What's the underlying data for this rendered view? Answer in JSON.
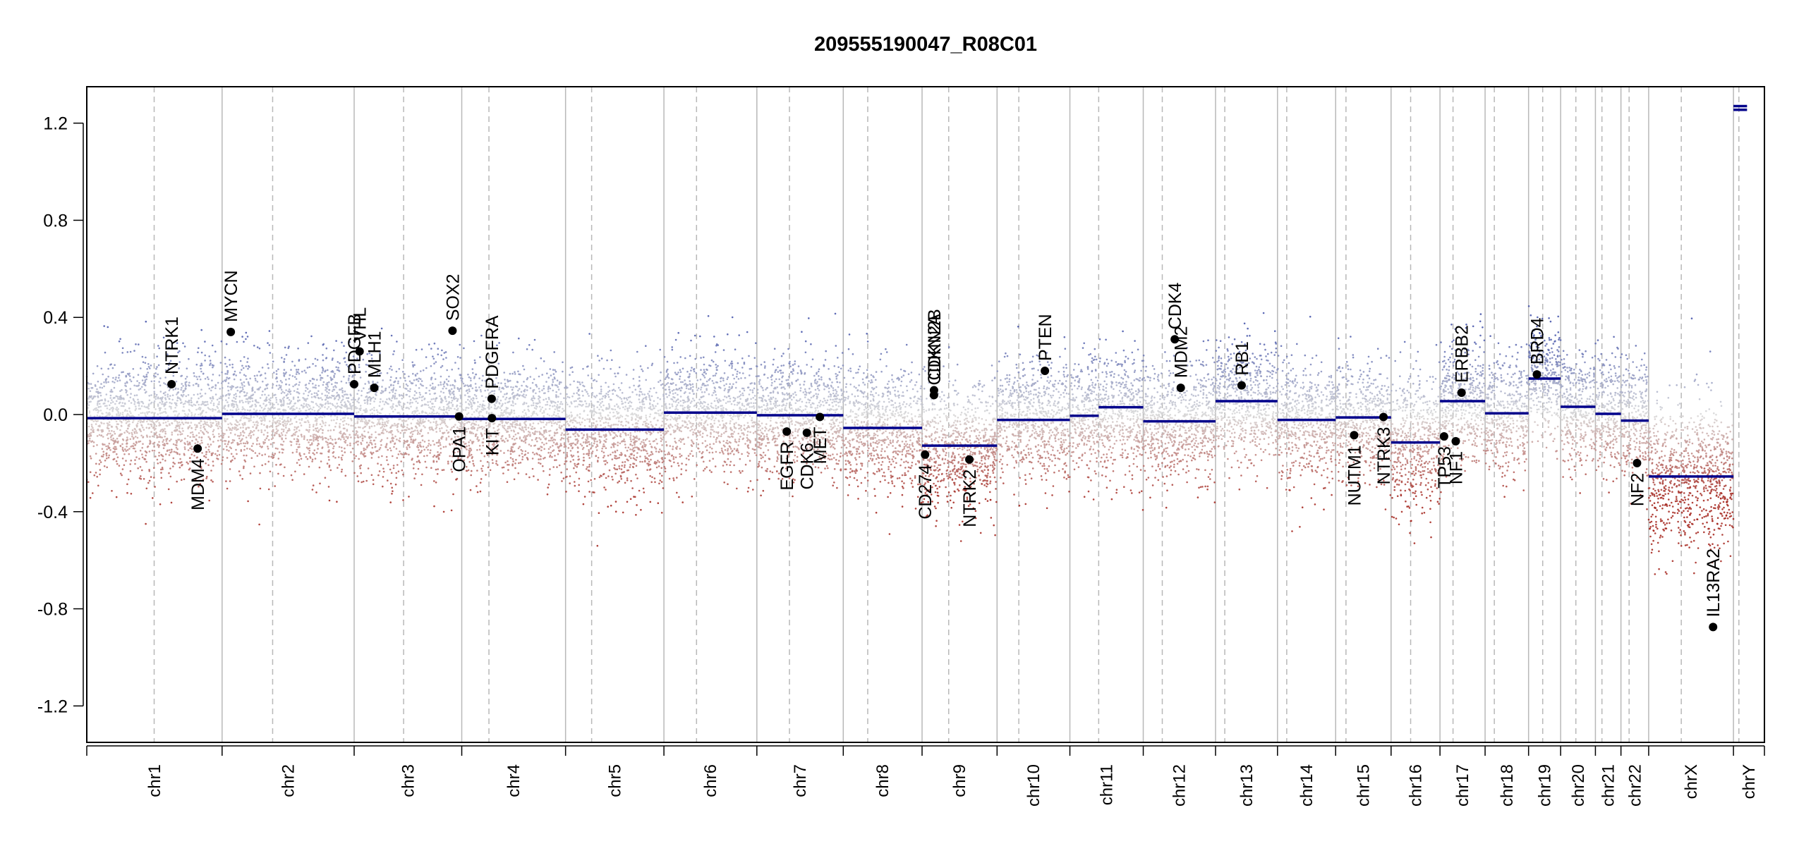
{
  "chart_data": {
    "type": "scatter",
    "title": "209555190047_R08C01",
    "xlabel": "",
    "ylabel": "",
    "ylim": [
      -1.35,
      1.35
    ],
    "y_ticks": [
      -1.2,
      -0.8,
      -0.4,
      0.0,
      0.4,
      0.8,
      1.2
    ],
    "y_tick_labels": [
      "-1.2",
      "-0.8",
      "-0.4",
      "0.0",
      "0.4",
      "0.8",
      "1.2"
    ],
    "grid": false,
    "x_tick_labels": [
      "chr1",
      "chr2",
      "chr3",
      "chr4",
      "chr5",
      "chr6",
      "chr7",
      "chr8",
      "chr9",
      "chr10",
      "chr11",
      "chr12",
      "chr13",
      "chr14",
      "chr15",
      "chr16",
      "chr17",
      "chr18",
      "chr19",
      "chr20",
      "chr21",
      "chr22",
      "chrX",
      "chrY"
    ],
    "chromosomes": [
      {
        "name": "chr1",
        "length_mb": 249,
        "centromere_mb": 124
      },
      {
        "name": "chr2",
        "length_mb": 243,
        "centromere_mb": 93
      },
      {
        "name": "chr3",
        "length_mb": 198,
        "centromere_mb": 91
      },
      {
        "name": "chr4",
        "length_mb": 191,
        "centromere_mb": 50
      },
      {
        "name": "chr5",
        "length_mb": 181,
        "centromere_mb": 48
      },
      {
        "name": "chr6",
        "length_mb": 171,
        "centromere_mb": 60
      },
      {
        "name": "chr7",
        "length_mb": 159,
        "centromere_mb": 60
      },
      {
        "name": "chr8",
        "length_mb": 145,
        "centromere_mb": 45
      },
      {
        "name": "chr9",
        "length_mb": 138,
        "centromere_mb": 49
      },
      {
        "name": "chr10",
        "length_mb": 134,
        "centromere_mb": 40
      },
      {
        "name": "chr11",
        "length_mb": 135,
        "centromere_mb": 53
      },
      {
        "name": "chr12",
        "length_mb": 133,
        "centromere_mb": 35
      },
      {
        "name": "chr13",
        "length_mb": 114,
        "centromere_mb": 17
      },
      {
        "name": "chr14",
        "length_mb": 107,
        "centromere_mb": 17
      },
      {
        "name": "chr15",
        "length_mb": 102,
        "centromere_mb": 19
      },
      {
        "name": "chr16",
        "length_mb": 90,
        "centromere_mb": 36
      },
      {
        "name": "chr17",
        "length_mb": 83,
        "centromere_mb": 24
      },
      {
        "name": "chr18",
        "length_mb": 80,
        "centromere_mb": 17
      },
      {
        "name": "chr19",
        "length_mb": 59,
        "centromere_mb": 26
      },
      {
        "name": "chr20",
        "length_mb": 64,
        "centromere_mb": 28
      },
      {
        "name": "chr21",
        "length_mb": 47,
        "centromere_mb": 12
      },
      {
        "name": "chr22",
        "length_mb": 51,
        "centromere_mb": 15
      },
      {
        "name": "chrX",
        "length_mb": 156,
        "centromere_mb": 60
      },
      {
        "name": "chrY",
        "length_mb": 57,
        "centromere_mb": 10
      }
    ],
    "segments": [
      {
        "chr": "chr1",
        "start_mb": 0,
        "end_mb": 249,
        "value": -0.015
      },
      {
        "chr": "chr2",
        "start_mb": 0,
        "end_mb": 243,
        "value": 0.003
      },
      {
        "chr": "chr3",
        "start_mb": 0,
        "end_mb": 198,
        "value": -0.008
      },
      {
        "chr": "chr4",
        "start_mb": 0,
        "end_mb": 191,
        "value": -0.018
      },
      {
        "chr": "chr5",
        "start_mb": 0,
        "end_mb": 181,
        "value": -0.062
      },
      {
        "chr": "chr6",
        "start_mb": 0,
        "end_mb": 171,
        "value": 0.008
      },
      {
        "chr": "chr7",
        "start_mb": 0,
        "end_mb": 159,
        "value": -0.003
      },
      {
        "chr": "chr8",
        "start_mb": 0,
        "end_mb": 145,
        "value": -0.055
      },
      {
        "chr": "chr9",
        "start_mb": 0,
        "end_mb": 138,
        "value": -0.128
      },
      {
        "chr": "chr10",
        "start_mb": 0,
        "end_mb": 134,
        "value": -0.022
      },
      {
        "chr": "chr11",
        "start_mb": 0,
        "end_mb": 53,
        "value": -0.005
      },
      {
        "chr": "chr11",
        "start_mb": 53,
        "end_mb": 135,
        "value": 0.03
      },
      {
        "chr": "chr12",
        "start_mb": 0,
        "end_mb": 133,
        "value": -0.028
      },
      {
        "chr": "chr13",
        "start_mb": 0,
        "end_mb": 114,
        "value": 0.055
      },
      {
        "chr": "chr14",
        "start_mb": 0,
        "end_mb": 107,
        "value": -0.022
      },
      {
        "chr": "chr15",
        "start_mb": 0,
        "end_mb": 102,
        "value": -0.012
      },
      {
        "chr": "chr16",
        "start_mb": 0,
        "end_mb": 90,
        "value": -0.115
      },
      {
        "chr": "chr17",
        "start_mb": 0,
        "end_mb": 83,
        "value": 0.055
      },
      {
        "chr": "chr18",
        "start_mb": 0,
        "end_mb": 80,
        "value": 0.005
      },
      {
        "chr": "chr19",
        "start_mb": 0,
        "end_mb": 59,
        "value": 0.148
      },
      {
        "chr": "chr20",
        "start_mb": 0,
        "end_mb": 64,
        "value": 0.032
      },
      {
        "chr": "chr21",
        "start_mb": 0,
        "end_mb": 47,
        "value": 0.003
      },
      {
        "chr": "chr22",
        "start_mb": 0,
        "end_mb": 51,
        "value": -0.025
      },
      {
        "chr": "chrX",
        "start_mb": 0,
        "end_mb": 156,
        "value": -0.255
      },
      {
        "chr": "chrY",
        "start_mb": 0,
        "end_mb": 25,
        "value": 1.255
      },
      {
        "chr": "chrY",
        "start_mb": 0,
        "end_mb": 25,
        "value": 1.27
      }
    ],
    "genes": [
      {
        "name": "NTRK1",
        "chr": "chr1",
        "pos_mb": 156,
        "value": 0.125,
        "label_side": "above"
      },
      {
        "name": "MDM4",
        "chr": "chr1",
        "pos_mb": 204,
        "value": -0.14,
        "label_side": "below"
      },
      {
        "name": "MYCN",
        "chr": "chr2",
        "pos_mb": 16,
        "value": 0.34,
        "label_side": "above"
      },
      {
        "name": "PDGFRA",
        "chr": "chr4",
        "pos_mb": 55,
        "value": 0.065,
        "label_side": "above"
      },
      {
        "name": "KIT",
        "chr": "chr4",
        "pos_mb": 55.5,
        "value": -0.015,
        "label_side": "below"
      },
      {
        "name": "PDGFB",
        "chr": "chr22",
        "pos_mb": 39.6,
        "value": 0.125,
        "label_side": "above",
        "placed_at": {
          "chr": "chr3",
          "pos_mb": 0
        }
      },
      {
        "name": "VHL",
        "chr": "chr3",
        "pos_mb": 10,
        "value": 0.26,
        "label_side": "above"
      },
      {
        "name": "MLH1",
        "chr": "chr3",
        "pos_mb": 37,
        "value": 0.11,
        "label_side": "above"
      },
      {
        "name": "SOX2",
        "chr": "chr3",
        "pos_mb": 181,
        "value": 0.345,
        "label_side": "above"
      },
      {
        "name": "OPA1",
        "chr": "chr3",
        "pos_mb": 193,
        "value": -0.008,
        "label_side": "below"
      },
      {
        "name": "EGFR",
        "chr": "chr7",
        "pos_mb": 55,
        "value": -0.07,
        "label_side": "below"
      },
      {
        "name": "CDK6",
        "chr": "chr7",
        "pos_mb": 92,
        "value": -0.075,
        "label_side": "below"
      },
      {
        "name": "MET",
        "chr": "chr7",
        "pos_mb": 116,
        "value": -0.01,
        "label_side": "below"
      },
      {
        "name": "CD274",
        "chr": "chr9",
        "pos_mb": 5.5,
        "value": -0.165,
        "label_side": "below"
      },
      {
        "name": "CDKN2A",
        "chr": "chr9",
        "pos_mb": 21.9,
        "value": 0.08,
        "label_side": "above"
      },
      {
        "name": "CDKN2B",
        "chr": "chr9",
        "pos_mb": 22.0,
        "value": 0.1,
        "label_side": "above"
      },
      {
        "name": "NTRK2",
        "chr": "chr9",
        "pos_mb": 87,
        "value": -0.185,
        "label_side": "below"
      },
      {
        "name": "PTEN",
        "chr": "chr10",
        "pos_mb": 88,
        "value": 0.18,
        "label_side": "above"
      },
      {
        "name": "CDK4",
        "chr": "chr12",
        "pos_mb": 58,
        "value": 0.31,
        "label_side": "above"
      },
      {
        "name": "MDM2",
        "chr": "chr12",
        "pos_mb": 69,
        "value": 0.11,
        "label_side": "above"
      },
      {
        "name": "RB1",
        "chr": "chr13",
        "pos_mb": 48,
        "value": 0.12,
        "label_side": "above"
      },
      {
        "name": "NUTM1",
        "chr": "chr15",
        "pos_mb": 34,
        "value": -0.085,
        "label_side": "below"
      },
      {
        "name": "NTRK3",
        "chr": "chr15",
        "pos_mb": 88,
        "value": -0.01,
        "label_side": "below"
      },
      {
        "name": "TP53",
        "chr": "chr17",
        "pos_mb": 7.5,
        "value": -0.09,
        "label_side": "below"
      },
      {
        "name": "NF1",
        "chr": "chr17",
        "pos_mb": 29,
        "value": -0.11,
        "label_side": "below"
      },
      {
        "name": "ERBB2",
        "chr": "chr17",
        "pos_mb": 39.7,
        "value": 0.09,
        "label_side": "above"
      },
      {
        "name": "BRD4",
        "chr": "chr19",
        "pos_mb": 15.3,
        "value": 0.165,
        "label_side": "above"
      },
      {
        "name": "NF2",
        "chr": "chr22",
        "pos_mb": 29.6,
        "value": -0.2,
        "label_side": "below"
      },
      {
        "name": "IL13RA2",
        "chr": "chrX",
        "pos_mb": 118.5,
        "value": -0.875,
        "label_side": "above"
      }
    ],
    "point_colors": {
      "gain": "#3f4fa8",
      "loss": "#a3221a",
      "neutral": "#9a9a9a"
    },
    "segment_color": "#00008b",
    "gene_point_color": "#000000"
  }
}
